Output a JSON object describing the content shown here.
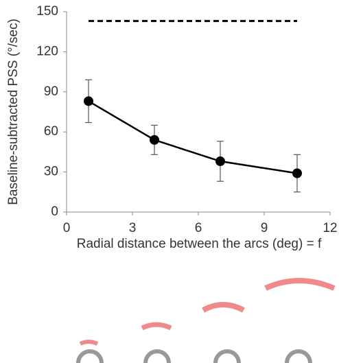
{
  "chart_data": {
    "type": "line",
    "xlabel": "Radial distance between the arcs (deg) = f",
    "ylabel": "Baseline-subtracted PSS (°/sec)",
    "x": [
      1,
      4,
      7,
      10.5
    ],
    "values": [
      83,
      54,
      38,
      29
    ],
    "errors": [
      16,
      11,
      15,
      14
    ],
    "color": "#000000",
    "reference_line": {
      "y": 143,
      "xlim": [
        1,
        10.5
      ]
    },
    "xlim": [
      0,
      12
    ],
    "xticks": [
      0,
      3,
      6,
      9,
      12
    ],
    "ylim": [
      0,
      150
    ],
    "yticks": [
      0,
      30,
      60,
      90,
      120,
      150
    ]
  }
}
